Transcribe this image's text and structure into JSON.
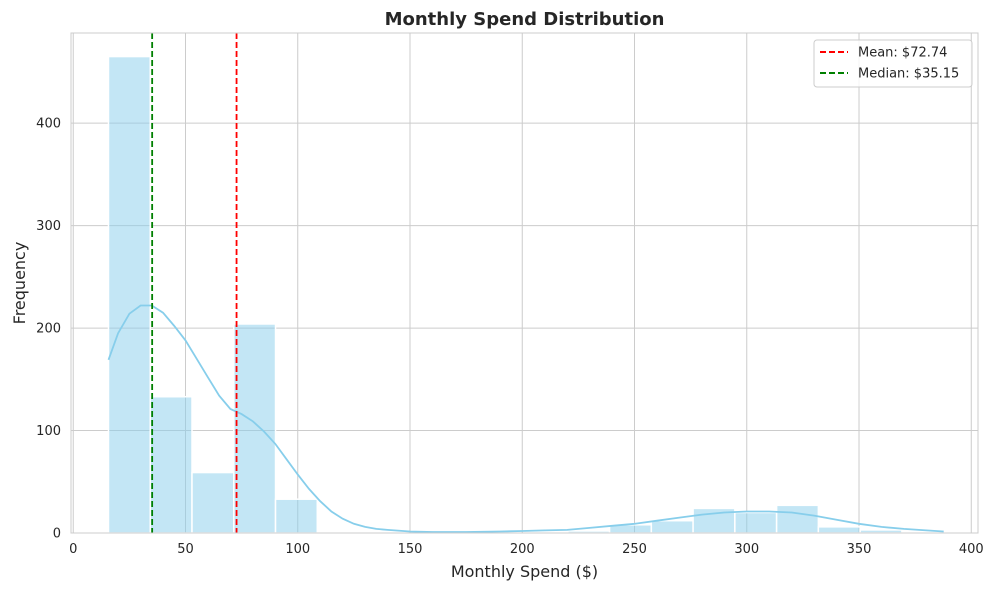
{
  "chart_data": {
    "type": "bar",
    "subtype": "histogram-with-kde",
    "title": "Monthly Spend Distribution",
    "xlabel": "Monthly Spend ($)",
    "ylabel": "Frequency",
    "xlim": [
      -1,
      403
    ],
    "ylim": [
      0,
      488
    ],
    "x_ticks": [
      0,
      50,
      100,
      150,
      200,
      250,
      300,
      350,
      400
    ],
    "y_ticks": [
      0,
      100,
      200,
      300,
      400
    ],
    "grid": true,
    "legend_position": "top-right",
    "bins": [
      {
        "x0": 15.7,
        "x1": 34.3,
        "value": 465
      },
      {
        "x0": 34.3,
        "x1": 52.9,
        "value": 133
      },
      {
        "x0": 52.9,
        "x1": 71.5,
        "value": 59
      },
      {
        "x0": 71.5,
        "x1": 90.1,
        "value": 204
      },
      {
        "x0": 90.1,
        "x1": 108.7,
        "value": 33
      },
      {
        "x0": 108.7,
        "x1": 127.3,
        "value": 0
      },
      {
        "x0": 127.3,
        "x1": 145.9,
        "value": 0
      },
      {
        "x0": 145.9,
        "x1": 164.5,
        "value": 0
      },
      {
        "x0": 164.5,
        "x1": 183.1,
        "value": 0
      },
      {
        "x0": 183.1,
        "x1": 201.7,
        "value": 0
      },
      {
        "x0": 201.7,
        "x1": 220.3,
        "value": 0
      },
      {
        "x0": 220.3,
        "x1": 238.9,
        "value": 2
      },
      {
        "x0": 238.9,
        "x1": 257.5,
        "value": 8
      },
      {
        "x0": 257.5,
        "x1": 276.1,
        "value": 12
      },
      {
        "x0": 276.1,
        "x1": 294.7,
        "value": 24
      },
      {
        "x0": 294.7,
        "x1": 313.3,
        "value": 20
      },
      {
        "x0": 313.3,
        "x1": 331.9,
        "value": 27
      },
      {
        "x0": 331.9,
        "x1": 350.5,
        "value": 6
      },
      {
        "x0": 350.5,
        "x1": 369.1,
        "value": 3
      },
      {
        "x0": 369.1,
        "x1": 387.7,
        "value": 0
      }
    ],
    "kde": {
      "x": [
        15.7,
        20,
        25,
        30,
        35,
        40,
        45,
        50,
        55,
        60,
        65,
        70,
        75,
        80,
        85,
        90,
        95,
        100,
        105,
        110,
        115,
        120,
        125,
        130,
        135,
        140,
        150,
        160,
        175,
        190,
        200,
        210,
        220,
        230,
        240,
        250,
        260,
        270,
        280,
        290,
        300,
        310,
        320,
        330,
        340,
        350,
        360,
        370,
        380,
        387.7
      ],
      "y": [
        169,
        195,
        214,
        222,
        222,
        215,
        202,
        188,
        170,
        152,
        134,
        121,
        116,
        109,
        99,
        87,
        72,
        57,
        43,
        31,
        21,
        14,
        9,
        6,
        4,
        3,
        1.5,
        1,
        1,
        1.5,
        2,
        2.5,
        3,
        5,
        7,
        9,
        12,
        15,
        18,
        20,
        21,
        21,
        20,
        17,
        13,
        9,
        6,
        4,
        2.5,
        1.5
      ]
    },
    "series": [
      {
        "name": "Mean: $72.74",
        "value": 72.74,
        "color": "#ff0000",
        "style": "dashed"
      },
      {
        "name": "Median: $35.15",
        "value": 35.15,
        "color": "#008000",
        "style": "dashed"
      }
    ],
    "colors": {
      "bar": "#87ceeb",
      "bar_opacity": 0.5,
      "kde": "#87ceeb",
      "grid": "#cccccc",
      "axes": "#cccccc",
      "text": "#262626"
    }
  }
}
